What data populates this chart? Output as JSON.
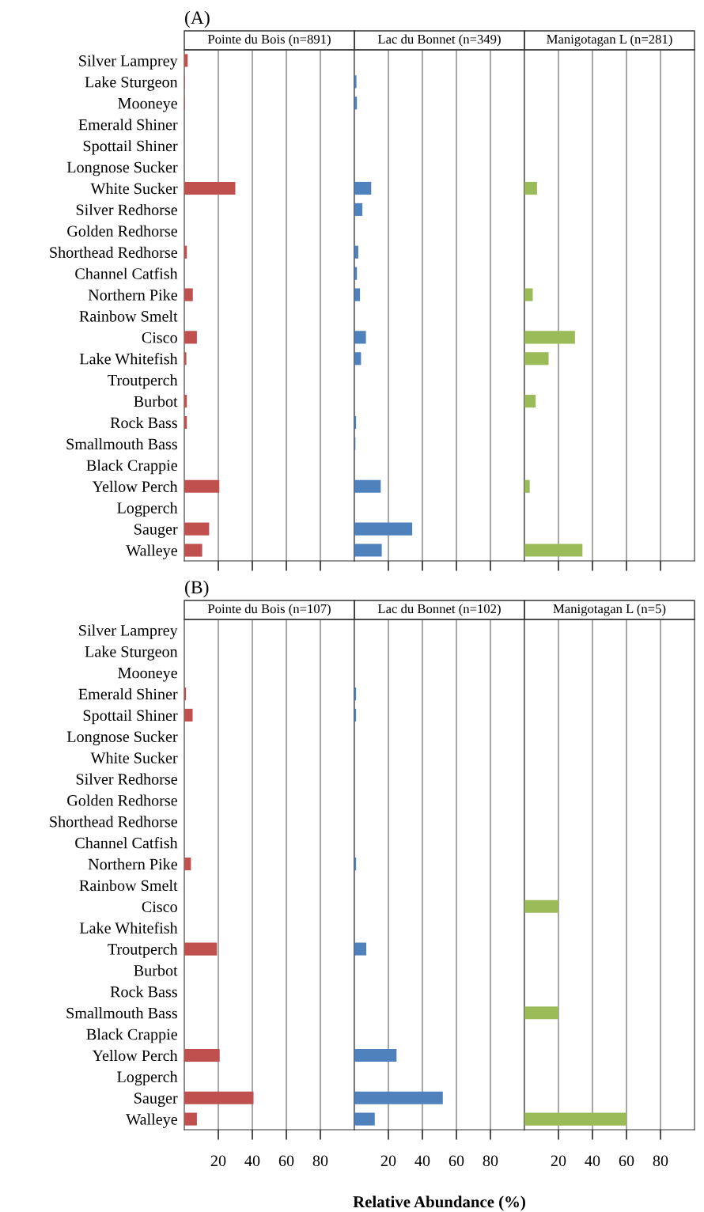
{
  "chart_data": [
    {
      "type": "bar",
      "orientation": "horizontal",
      "title": "Pointe du Bois (n=891)",
      "annotations": [
        "(A)"
      ],
      "categories": [
        "Silver Lamprey",
        "Lake Sturgeon",
        "Mooneye",
        "Emerald Shiner",
        "Spottail Shiner",
        "Longnose Sucker",
        "White Sucker",
        "Silver Redhorse",
        "Golden Redhorse",
        "Shorthead Redhorse",
        "Channel Catfish",
        "Northern Pike",
        "Rainbow Smelt",
        "Cisco",
        "Lake Whitefish",
        "Troutperch",
        "Burbot",
        "Rock Bass",
        "Smallmouth Bass",
        "Black Crappie",
        "Yellow Perch",
        "Logperch",
        "Sauger",
        "Walleye"
      ],
      "color": "#c0504d",
      "values": [
        2,
        0.3,
        0.3,
        null,
        null,
        null,
        30,
        null,
        null,
        1.5,
        null,
        5,
        null,
        7.4,
        1.2,
        null,
        1.5,
        1.5,
        null,
        null,
        20.6,
        null,
        14.6,
        10.5
      ],
      "xlim": [
        0,
        100
      ],
      "xticks": [
        20,
        40,
        60,
        80
      ],
      "grid": "x",
      "tick_labels": "y"
    },
    {
      "type": "bar",
      "orientation": "horizontal",
      "title": "Lac du Bonnet (n=349)",
      "categories": [
        null,
        null,
        null,
        null,
        null,
        null,
        null,
        null,
        null,
        null,
        null,
        null,
        null,
        null,
        null,
        null,
        null,
        null,
        null,
        null,
        null,
        null,
        null,
        null
      ],
      "color": "#4f81bd",
      "values": [
        null,
        1.2,
        1.5,
        null,
        null,
        null,
        9.9,
        4.7,
        null,
        2.3,
        1.5,
        3.3,
        null,
        6.8,
        3.9,
        null,
        null,
        1,
        0.6,
        null,
        15.5,
        null,
        34,
        16.1
      ],
      "xlim": [
        0,
        100
      ],
      "xticks": [
        20,
        40,
        60,
        80
      ],
      "grid": "x",
      "tick_labels": false
    },
    {
      "type": "bar",
      "orientation": "horizontal",
      "title": "Manigotagan L (n=281)",
      "categories": [
        null,
        null,
        null,
        null,
        null,
        null,
        null,
        null,
        null,
        null,
        null,
        null,
        null,
        null,
        null,
        null,
        null,
        null,
        null,
        null,
        null,
        null,
        null,
        null
      ],
      "color": "#9bbb59",
      "values": [
        null,
        null,
        null,
        null,
        null,
        null,
        7.4,
        null,
        null,
        null,
        null,
        4.9,
        null,
        29.7,
        14.2,
        null,
        6.6,
        null,
        null,
        null,
        3.1,
        null,
        null,
        34.1
      ],
      "xlim": [
        0,
        100
      ],
      "xticks": [
        20,
        40,
        60,
        80
      ],
      "grid": "x",
      "tick_labels": false
    },
    {
      "type": "bar",
      "orientation": "horizontal",
      "title": "Pointe du Bois (n=107)",
      "annotations": [
        "(B)"
      ],
      "categories": [
        "Silver Lamprey",
        "Lake Sturgeon",
        "Mooneye",
        "Emerald Shiner",
        "Spottail Shiner",
        "Longnose Sucker",
        "White Sucker",
        "Silver Redhorse",
        "Golden Redhorse",
        "Shorthead Redhorse",
        "Channel Catfish",
        "Northern Pike",
        "Rainbow Smelt",
        "Cisco",
        "Lake Whitefish",
        "Troutperch",
        "Burbot",
        "Rock Bass",
        "Smallmouth Bass",
        "Black Crappie",
        "Yellow Perch",
        "Logperch",
        "Sauger",
        "Walleye"
      ],
      "color": "#c0504d",
      "values": [
        null,
        null,
        null,
        1,
        4.9,
        null,
        null,
        null,
        null,
        null,
        null,
        3.9,
        null,
        null,
        null,
        19.2,
        null,
        null,
        null,
        null,
        20.8,
        null,
        40.7,
        7.4
      ],
      "xlim": [
        0,
        100
      ],
      "xticks": [
        20,
        40,
        60,
        80
      ],
      "grid": "x"
    },
    {
      "type": "bar",
      "orientation": "horizontal",
      "title": "Lac du Bonnet (n=102)",
      "xlabel": "Relative Abundance (%)",
      "categories": [
        null,
        null,
        null,
        null,
        null,
        null,
        null,
        null,
        null,
        null,
        null,
        null,
        null,
        null,
        null,
        null,
        null,
        null,
        null,
        null,
        null,
        null,
        null,
        null
      ],
      "color": "#4f81bd",
      "values": [
        null,
        null,
        null,
        1,
        1,
        null,
        null,
        null,
        null,
        null,
        null,
        1,
        null,
        null,
        null,
        7,
        null,
        null,
        null,
        null,
        24.8,
        null,
        52,
        12
      ],
      "xlim": [
        0,
        100
      ],
      "xticks": [
        20,
        40,
        60,
        80
      ],
      "grid": "x",
      "tick_labels": "x"
    },
    {
      "type": "bar",
      "orientation": "horizontal",
      "title": "Manigotagan L (n=5)",
      "categories": [
        null,
        null,
        null,
        null,
        null,
        null,
        null,
        null,
        null,
        null,
        null,
        null,
        null,
        null,
        null,
        null,
        null,
        null,
        null,
        null,
        null,
        null,
        null,
        null
      ],
      "color": "#9bbb59",
      "values": [
        null,
        null,
        null,
        null,
        null,
        null,
        null,
        null,
        null,
        null,
        null,
        null,
        null,
        20,
        null,
        null,
        null,
        null,
        20,
        null,
        null,
        null,
        null,
        60
      ],
      "xlim": [
        0,
        100
      ],
      "xticks": [
        20,
        40,
        60,
        80
      ],
      "grid": "x",
      "tick_labels": "x"
    }
  ]
}
